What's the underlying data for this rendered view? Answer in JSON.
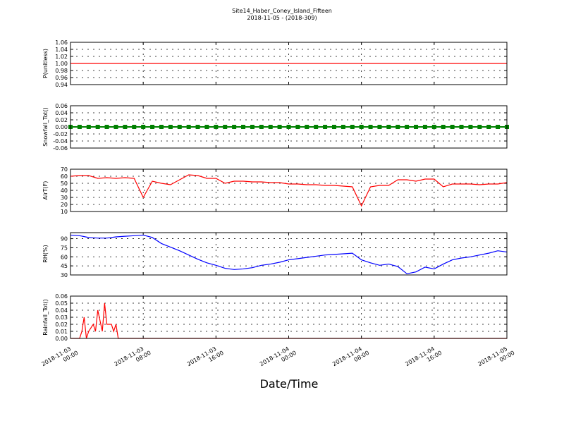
{
  "figure": {
    "title": "Site14_Haber_Coney_Island_Fifteen",
    "subtitle": "2018-11-05 - (2018-309)",
    "xlabel": "Date/Time"
  },
  "chart_data": [
    {
      "type": "line",
      "ylabel": "P(unitless)",
      "xlim": [
        "2018-11-03 00:00",
        "2018-11-05 00:00"
      ],
      "xticks": [
        "2018-11-03 00:00",
        "2018-11-03 08:00",
        "2018-11-03 16:00",
        "2018-11-04 00:00",
        "2018-11-04 08:00",
        "2018-11-04 16:00",
        "2018-11-05 00:00"
      ],
      "ylim": [
        0.94,
        1.06
      ],
      "yticks": [
        0.94,
        0.96,
        0.98,
        {
          "value": 1,
          "label": "1.00"
        },
        1.02,
        1.04,
        1.06
      ],
      "grid": true,
      "x": [
        "2018-11-03 00:00",
        "2018-11-05 00:00"
      ],
      "series": [
        {
          "color": "#ff0000",
          "values": [
            1,
            1
          ]
        }
      ]
    },
    {
      "type": "line",
      "ylabel": "Snowfall_Tot()",
      "xlim": [
        "2018-11-03 00:00",
        "2018-11-05 00:00"
      ],
      "xticks": [
        "2018-11-03 00:00",
        "2018-11-03 08:00",
        "2018-11-03 16:00",
        "2018-11-04 00:00",
        "2018-11-04 08:00",
        "2018-11-04 16:00",
        "2018-11-05 00:00"
      ],
      "ylim": [
        -0.06,
        0.06
      ],
      "yticks": [
        -0.06,
        -0.04,
        -0.02,
        {
          "value": 0,
          "label": "0.00"
        },
        0.02,
        0.04,
        0.06
      ],
      "grid": true,
      "x": [
        "2018-11-03 00:00",
        "2018-11-03 01:00",
        "2018-11-03 02:00",
        "2018-11-03 03:00",
        "2018-11-03 04:00",
        "2018-11-03 05:00",
        "2018-11-03 06:00",
        "2018-11-03 07:00",
        "2018-11-03 08:00",
        "2018-11-03 09:00",
        "2018-11-03 10:00",
        "2018-11-03 11:00",
        "2018-11-03 12:00",
        "2018-11-03 13:00",
        "2018-11-03 14:00",
        "2018-11-03 15:00",
        "2018-11-03 16:00",
        "2018-11-03 17:00",
        "2018-11-03 18:00",
        "2018-11-03 19:00",
        "2018-11-03 20:00",
        "2018-11-03 21:00",
        "2018-11-03 22:00",
        "2018-11-03 23:00",
        "2018-11-04 00:00",
        "2018-11-04 01:00",
        "2018-11-04 02:00",
        "2018-11-04 03:00",
        "2018-11-04 04:00",
        "2018-11-04 05:00",
        "2018-11-04 06:00",
        "2018-11-04 07:00",
        "2018-11-04 08:00",
        "2018-11-04 09:00",
        "2018-11-04 10:00",
        "2018-11-04 11:00",
        "2018-11-04 12:00",
        "2018-11-04 13:00",
        "2018-11-04 14:00",
        "2018-11-04 15:00",
        "2018-11-04 16:00",
        "2018-11-04 17:00",
        "2018-11-04 18:00",
        "2018-11-04 19:00",
        "2018-11-04 20:00",
        "2018-11-04 21:00",
        "2018-11-04 22:00",
        "2018-11-04 23:00",
        "2018-11-05 00:00"
      ],
      "series": [
        {
          "color": "#008000",
          "marker": true,
          "values": [
            0,
            0,
            0,
            0,
            0,
            0,
            0,
            0,
            0,
            0,
            0,
            0,
            0,
            0,
            0,
            0,
            0,
            0,
            0,
            0,
            0,
            0,
            0,
            0,
            0,
            0,
            0,
            0,
            0,
            0,
            0,
            0,
            0,
            0,
            0,
            0,
            0,
            0,
            0,
            0,
            0,
            0,
            0,
            0,
            0,
            0,
            0,
            0,
            0
          ]
        }
      ]
    },
    {
      "type": "line",
      "ylabel": "AirT(F)",
      "xlim": [
        "2018-11-03 00:00",
        "2018-11-05 00:00"
      ],
      "xticks": [
        "2018-11-03 00:00",
        "2018-11-03 08:00",
        "2018-11-03 16:00",
        "2018-11-04 00:00",
        "2018-11-04 08:00",
        "2018-11-04 16:00",
        "2018-11-05 00:00"
      ],
      "ylim": [
        10,
        70
      ],
      "yticks": [
        10,
        20,
        30,
        40,
        50,
        60,
        70
      ],
      "grid": true,
      "x": [
        "2018-11-03 00:00",
        "2018-11-03 01:00",
        "2018-11-03 02:00",
        "2018-11-03 03:00",
        "2018-11-03 04:00",
        "2018-11-03 05:00",
        "2018-11-03 06:00",
        "2018-11-03 07:00",
        "2018-11-03 08:00",
        "2018-11-03 09:00",
        "2018-11-03 10:00",
        "2018-11-03 11:00",
        "2018-11-03 12:00",
        "2018-11-03 13:00",
        "2018-11-03 14:00",
        "2018-11-03 15:00",
        "2018-11-03 16:00",
        "2018-11-03 17:00",
        "2018-11-03 18:00",
        "2018-11-03 19:00",
        "2018-11-03 20:00",
        "2018-11-03 21:00",
        "2018-11-03 22:00",
        "2018-11-03 23:00",
        "2018-11-04 00:00",
        "2018-11-04 01:00",
        "2018-11-04 02:00",
        "2018-11-04 03:00",
        "2018-11-04 04:00",
        "2018-11-04 05:00",
        "2018-11-04 06:00",
        "2018-11-04 07:00",
        "2018-11-04 08:00",
        "2018-11-04 09:00",
        "2018-11-04 10:00",
        "2018-11-04 11:00",
        "2018-11-04 12:00",
        "2018-11-04 13:00",
        "2018-11-04 14:00",
        "2018-11-04 15:00",
        "2018-11-04 16:00",
        "2018-11-04 17:00",
        "2018-11-04 18:00",
        "2018-11-04 19:00",
        "2018-11-04 20:00",
        "2018-11-04 21:00",
        "2018-11-04 22:00",
        "2018-11-04 23:00",
        "2018-11-05 00:00"
      ],
      "series": [
        {
          "color": "#ff0000",
          "values": [
            60,
            61,
            61,
            57,
            58,
            57,
            58,
            57,
            30,
            53,
            50,
            48,
            55,
            62,
            61,
            57,
            57,
            50,
            53,
            53,
            52,
            52,
            51,
            51,
            49,
            49,
            48,
            48,
            47,
            47,
            46,
            45,
            18,
            45,
            47,
            47,
            55,
            55,
            53,
            56,
            56,
            45,
            49,
            49,
            49,
            48,
            49,
            49,
            51
          ]
        }
      ]
    },
    {
      "type": "line",
      "ylabel": "RH(%)",
      "xlim": [
        "2018-11-03 00:00",
        "2018-11-05 00:00"
      ],
      "xticks": [
        "2018-11-03 00:00",
        "2018-11-03 08:00",
        "2018-11-03 16:00",
        "2018-11-04 00:00",
        "2018-11-04 08:00",
        "2018-11-04 16:00",
        "2018-11-05 00:00"
      ],
      "ylim": [
        30,
        100
      ],
      "yticks": [
        30,
        45,
        60,
        75,
        90
      ],
      "grid": true,
      "x": [
        "2018-11-03 00:00",
        "2018-11-03 01:00",
        "2018-11-03 02:00",
        "2018-11-03 03:00",
        "2018-11-03 04:00",
        "2018-11-03 05:00",
        "2018-11-03 06:00",
        "2018-11-03 07:00",
        "2018-11-03 08:00",
        "2018-11-03 09:00",
        "2018-11-03 10:00",
        "2018-11-03 11:00",
        "2018-11-03 12:00",
        "2018-11-03 13:00",
        "2018-11-03 14:00",
        "2018-11-03 15:00",
        "2018-11-03 16:00",
        "2018-11-03 17:00",
        "2018-11-03 18:00",
        "2018-11-03 19:00",
        "2018-11-03 20:00",
        "2018-11-03 21:00",
        "2018-11-03 22:00",
        "2018-11-03 23:00",
        "2018-11-04 00:00",
        "2018-11-04 01:00",
        "2018-11-04 02:00",
        "2018-11-04 03:00",
        "2018-11-04 04:00",
        "2018-11-04 05:00",
        "2018-11-04 06:00",
        "2018-11-04 07:00",
        "2018-11-04 08:00",
        "2018-11-04 09:00",
        "2018-11-04 10:00",
        "2018-11-04 11:00",
        "2018-11-04 12:00",
        "2018-11-04 13:00",
        "2018-11-04 14:00",
        "2018-11-04 15:00",
        "2018-11-04 16:00",
        "2018-11-04 17:00",
        "2018-11-04 18:00",
        "2018-11-04 19:00",
        "2018-11-04 20:00",
        "2018-11-04 21:00",
        "2018-11-04 22:00",
        "2018-11-04 23:00",
        "2018-11-05 00:00"
      ],
      "series": [
        {
          "color": "#0000ff",
          "values": [
            96,
            95,
            92,
            91,
            91,
            93,
            94,
            95,
            96,
            92,
            82,
            76,
            70,
            63,
            56,
            50,
            46,
            41,
            39,
            40,
            42,
            46,
            48,
            51,
            55,
            57,
            59,
            61,
            63,
            64,
            65,
            66,
            55,
            50,
            46,
            48,
            44,
            32,
            35,
            43,
            40,
            48,
            55,
            58,
            60,
            63,
            66,
            70,
            68
          ]
        }
      ]
    },
    {
      "type": "line",
      "ylabel": "Rainfall_Tot()",
      "xlim": [
        "2018-11-03 00:00",
        "2018-11-05 00:00"
      ],
      "xticks": [
        "2018-11-03 00:00",
        "2018-11-03 08:00",
        "2018-11-03 16:00",
        "2018-11-04 00:00",
        "2018-11-04 08:00",
        "2018-11-04 16:00",
        "2018-11-05 00:00"
      ],
      "ylim": [
        0,
        0.06
      ],
      "yticks": [
        {
          "value": 0,
          "label": "0.00"
        },
        0.01,
        0.02,
        0.03,
        0.04,
        0.05,
        0.06
      ],
      "grid": true,
      "x": [
        "2018-11-03 00:00",
        "2018-11-03 01:00",
        "2018-11-03 01:15",
        "2018-11-03 01:30",
        "2018-11-03 01:45",
        "2018-11-03 02:00",
        "2018-11-03 02:30",
        "2018-11-03 02:45",
        "2018-11-03 03:00",
        "2018-11-03 03:30",
        "2018-11-03 03:45",
        "2018-11-03 04:00",
        "2018-11-03 04:30",
        "2018-11-03 04:45",
        "2018-11-03 05:00",
        "2018-11-03 05:15",
        "2018-11-05 00:00"
      ],
      "series": [
        {
          "color": "#ff0000",
          "values": [
            0,
            0,
            0.01,
            0.03,
            0,
            0.01,
            0.02,
            0.01,
            0.04,
            0.01,
            0.05,
            0.02,
            0.02,
            0.01,
            0.02,
            0,
            0
          ]
        }
      ]
    }
  ]
}
